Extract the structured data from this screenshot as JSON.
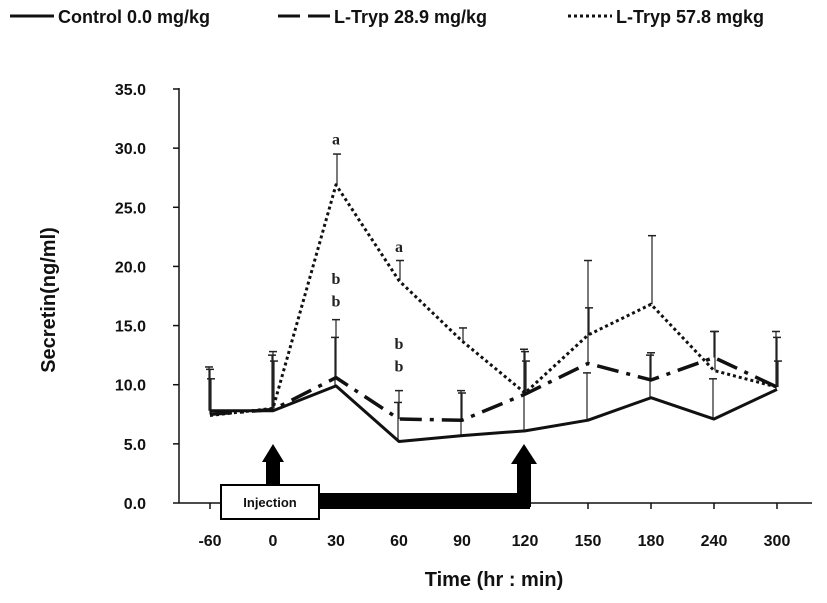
{
  "chart_data": {
    "type": "line",
    "title": "",
    "xlabel": "Time (hr : min)",
    "ylabel": "Secretin(ng/ml)",
    "categories": [
      "-60",
      "0",
      "30",
      "60",
      "90",
      "120",
      "150",
      "180",
      "240",
      "300"
    ],
    "ylim": [
      0,
      35
    ],
    "yticks": [
      "0.0",
      "5.0",
      "10.0",
      "15.0",
      "20.0",
      "25.0",
      "30.0",
      "35.0"
    ],
    "grid": false,
    "legend_position": "top",
    "series": [
      {
        "name": "Control 0.0 mg/kg",
        "style": "solid",
        "values": [
          7.8,
          7.8,
          9.9,
          5.2,
          5.7,
          6.1,
          7.0,
          8.9,
          7.1,
          9.6
        ],
        "error_upper": [
          11.5,
          12.5,
          14.0,
          8.5,
          9.5,
          13.0,
          11.0,
          12.5,
          10.5,
          14.5
        ]
      },
      {
        "name": "L-Tryp 28.9 mg/kg",
        "style": "dashdot",
        "values": [
          7.5,
          7.9,
          10.6,
          7.1,
          7.0,
          9.2,
          11.8,
          10.4,
          12.3,
          9.8
        ],
        "error_upper": [
          11.3,
          12.8,
          15.5,
          9.5,
          9.3,
          12.8,
          20.5,
          12.7,
          14.5,
          14.0
        ]
      },
      {
        "name": "L-Tryp 57.8 mgkg",
        "style": "dotted",
        "values": [
          7.4,
          8.0,
          26.9,
          18.8,
          13.7,
          9.3,
          14.2,
          16.8,
          11.2,
          9.8
        ],
        "error_upper": [
          10.5,
          12.0,
          29.5,
          20.5,
          14.8,
          12.0,
          16.5,
          22.6,
          14.5,
          12.0
        ]
      }
    ],
    "annotations": [
      {
        "text": "a",
        "x": "30",
        "y": 30.3
      },
      {
        "text": "b",
        "x": "30",
        "y": 18.5
      },
      {
        "text": "b",
        "x": "30",
        "y": 16.6
      },
      {
        "text": "a",
        "x": "60",
        "y": 21.2
      },
      {
        "text": "b",
        "x": "60",
        "y": 13.0
      },
      {
        "text": "b",
        "x": "60",
        "y": 11.1
      }
    ],
    "injection": {
      "label": "Injection",
      "at": [
        "0",
        "120"
      ]
    }
  }
}
